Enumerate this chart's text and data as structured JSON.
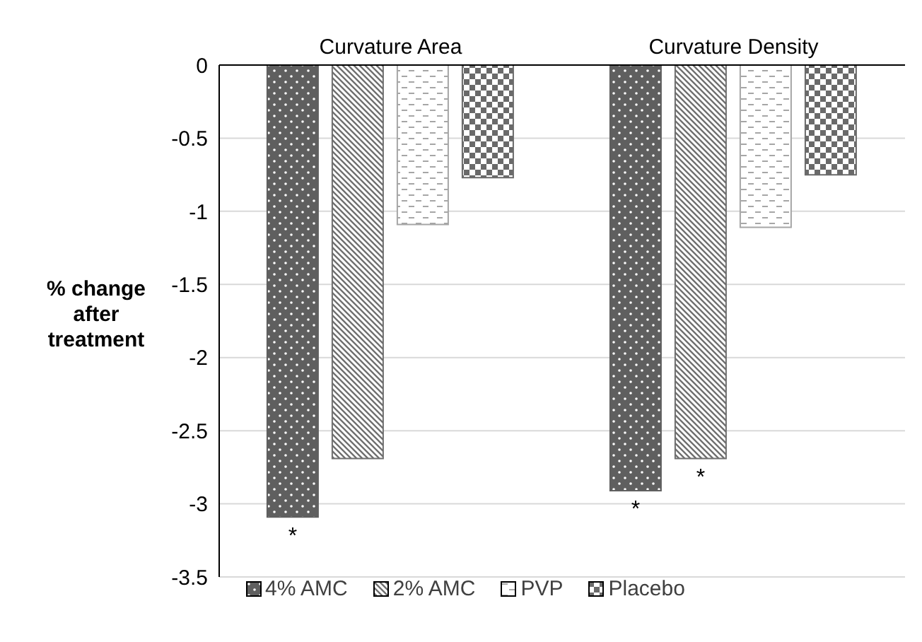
{
  "chart_data": {
    "type": "bar",
    "ylabel": "% change after treatment",
    "categories": [
      "Curvature Area",
      "Curvature Density"
    ],
    "series": [
      {
        "name": "4% AMC",
        "color": "#5f5f5f",
        "values": [
          -3.09,
          -2.91
        ],
        "value_labels": [
          "*",
          "*"
        ]
      },
      {
        "name": "2% AMC",
        "color": "#6f6f6f",
        "values": [
          -2.69,
          -2.69
        ],
        "value_labels": [
          null,
          "*"
        ]
      },
      {
        "name": "PVP",
        "color": "#a6a6a6",
        "values": [
          -1.09,
          -1.11
        ]
      },
      {
        "name": "Placebo",
        "color": "#6a6a6a",
        "values": [
          -0.77,
          -0.75
        ]
      }
    ],
    "ylim": [
      -3.5,
      0
    ],
    "yticks": [
      0,
      -0.5,
      -1,
      -1.5,
      -2,
      -2.5,
      -3,
      -3.5
    ],
    "grid": "y",
    "legend": "bottom"
  }
}
